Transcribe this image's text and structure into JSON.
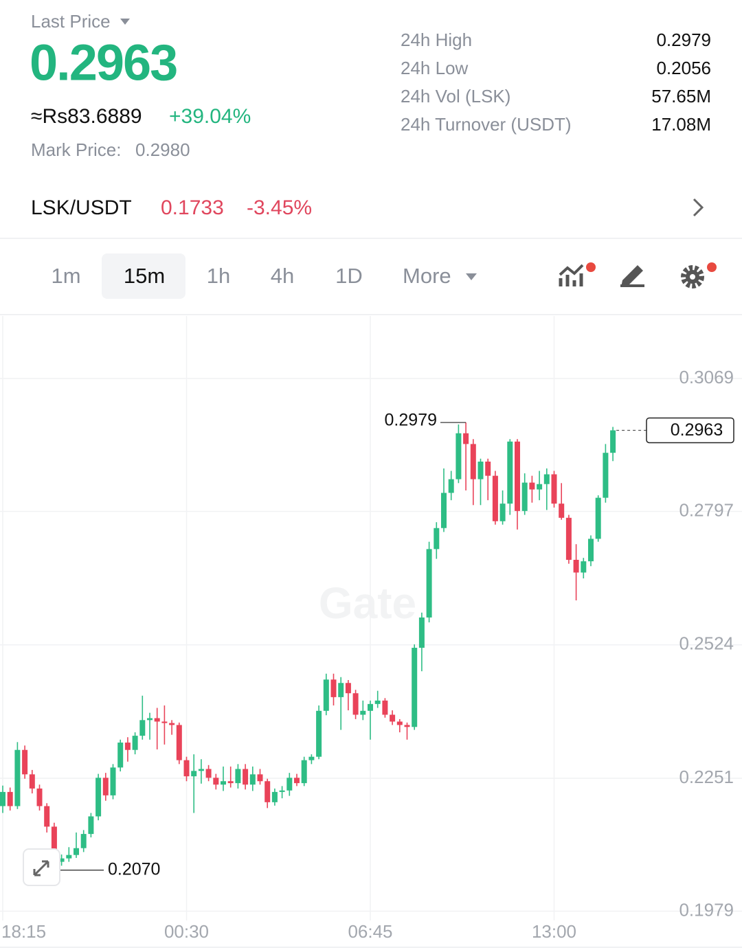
{
  "header": {
    "last_price_label": "Last Price",
    "last_price": "0.2963",
    "fiat_price": "≈Rs83.6889",
    "change": "+39.04%",
    "mark_price_label": "Mark Price:",
    "mark_price": "0.2980"
  },
  "stats": [
    {
      "label": "24h High",
      "value": "0.2979"
    },
    {
      "label": "24h Low",
      "value": "0.2056"
    },
    {
      "label": "24h Vol (LSK)",
      "value": "57.65M"
    },
    {
      "label": "24h Turnover (USDT)",
      "value": "17.08M"
    }
  ],
  "pair": {
    "name": "LSK/USDT",
    "price": "0.1733",
    "change": "-3.45%"
  },
  "timeframes": [
    "1m",
    "15m",
    "1h",
    "4h",
    "1D",
    "More"
  ],
  "chart_data": {
    "type": "candlestick",
    "watermark": "Gate",
    "categories": [
      null,
      null,
      null,
      null,
      null,
      null,
      null,
      null,
      null,
      null,
      null,
      null,
      null,
      null,
      null,
      null,
      null,
      null,
      null,
      null,
      null,
      null,
      null,
      null,
      null,
      null,
      null,
      null,
      null,
      null,
      null,
      null,
      null,
      null,
      null,
      null,
      null,
      null,
      null,
      null,
      null,
      null,
      null,
      null,
      null,
      null,
      null,
      null,
      null,
      null,
      null,
      null,
      null,
      null,
      null,
      null,
      null,
      null,
      null,
      null,
      null,
      null,
      null,
      null,
      null,
      null,
      null,
      null,
      null,
      null,
      null,
      null,
      null,
      null,
      null,
      null,
      null,
      null,
      null,
      null,
      null,
      null,
      null,
      null
    ],
    "open": [
      0.2194,
      0.2223,
      0.2194,
      0.2309,
      0.2259,
      0.223,
      0.2194,
      0.2152,
      0.208,
      0.2087,
      0.2094,
      0.2108,
      0.2137,
      0.2173,
      0.2252,
      0.2216,
      0.2273,
      0.2324,
      0.2309,
      0.2338,
      0.237,
      0.2374,
      0.2367,
      0.2364,
      0.236,
      0.2288,
      0.2255,
      0.2266,
      0.227,
      0.2252,
      0.2238,
      0.2245,
      0.2241,
      0.227,
      0.2238,
      0.2259,
      0.2245,
      0.2202,
      0.2223,
      0.2226,
      0.2252,
      0.2241,
      0.2288,
      0.2295,
      0.2389,
      0.2453,
      0.2417,
      0.2446,
      0.2425,
      0.2381,
      0.2389,
      0.2403,
      0.241,
      0.2381,
      0.2367,
      0.236,
      0.2356,
      0.2518,
      0.258,
      0.272,
      0.2763,
      0.2835,
      0.2863,
      0.2957,
      0.2935,
      0.2863,
      0.2899,
      0.287,
      0.2777,
      0.2813,
      0.294,
      0.2798,
      0.2856,
      0.2842,
      0.2853,
      0.2873,
      0.2813,
      0.2784,
      0.2698,
      0.2672,
      0.2695,
      0.2741,
      0.2825,
      0.2917
    ],
    "high": [
      0.2236,
      0.2232,
      0.2325,
      0.2318,
      0.2268,
      0.2238,
      0.22,
      0.216,
      0.2095,
      0.211,
      0.214,
      0.2145,
      0.218,
      0.226,
      0.2262,
      0.228,
      0.233,
      0.2335,
      0.2345,
      0.242,
      0.2385,
      0.2395,
      0.24,
      0.237,
      0.2365,
      0.2295,
      0.23,
      0.229,
      0.2278,
      0.226,
      0.2275,
      0.2275,
      0.228,
      0.228,
      0.2275,
      0.227,
      0.225,
      0.223,
      0.2235,
      0.2262,
      0.226,
      0.2295,
      0.23,
      0.24,
      0.2465,
      0.2465,
      0.2458,
      0.2452,
      0.2432,
      0.241,
      0.241,
      0.243,
      0.2415,
      0.239,
      0.2372,
      0.2365,
      0.2525,
      0.259,
      0.2735,
      0.2775,
      0.2885,
      0.288,
      0.2975,
      0.2979,
      0.2945,
      0.2905,
      0.2905,
      0.288,
      0.284,
      0.2945,
      0.2945,
      0.2875,
      0.287,
      0.288,
      0.2885,
      0.288,
      0.2855,
      0.279,
      0.273,
      0.2702,
      0.2748,
      0.283,
      0.2935,
      0.297
    ],
    "low": [
      0.218,
      0.2185,
      0.2188,
      0.225,
      0.222,
      0.2185,
      0.214,
      0.207,
      0.2072,
      0.208,
      0.2088,
      0.21,
      0.213,
      0.2165,
      0.2205,
      0.2208,
      0.2265,
      0.2285,
      0.23,
      0.233,
      0.233,
      0.231,
      0.232,
      0.234,
      0.228,
      0.2245,
      0.218,
      0.224,
      0.2245,
      0.2228,
      0.2225,
      0.2232,
      0.223,
      0.2228,
      0.2225,
      0.2238,
      0.219,
      0.2195,
      0.221,
      0.2215,
      0.2235,
      0.2235,
      0.228,
      0.229,
      0.238,
      0.24,
      0.235,
      0.239,
      0.2372,
      0.237,
      0.233,
      0.2395,
      0.2375,
      0.236,
      0.2345,
      0.233,
      0.235,
      0.247,
      0.257,
      0.27,
      0.2755,
      0.282,
      0.2855,
      0.284,
      0.281,
      0.281,
      0.282,
      0.277,
      0.277,
      0.279,
      0.276,
      0.279,
      0.2815,
      0.282,
      0.28,
      0.2805,
      0.278,
      0.269,
      0.2615,
      0.266,
      0.2685,
      0.2735,
      0.2815,
      0.29
    ],
    "close": [
      0.2223,
      0.2194,
      0.2309,
      0.2259,
      0.223,
      0.2194,
      0.2152,
      0.208,
      0.2087,
      0.2094,
      0.2108,
      0.2137,
      0.2173,
      0.2252,
      0.2216,
      0.2273,
      0.2324,
      0.2309,
      0.2338,
      0.237,
      0.2374,
      0.2367,
      0.2364,
      0.236,
      0.2288,
      0.2255,
      0.2266,
      0.227,
      0.2252,
      0.2238,
      0.2245,
      0.2241,
      0.227,
      0.2238,
      0.2259,
      0.2245,
      0.2202,
      0.2223,
      0.2226,
      0.2252,
      0.2241,
      0.2288,
      0.2295,
      0.2389,
      0.2453,
      0.2417,
      0.2446,
      0.2425,
      0.2381,
      0.2389,
      0.2403,
      0.241,
      0.2381,
      0.2367,
      0.236,
      0.2356,
      0.2518,
      0.258,
      0.272,
      0.2763,
      0.2835,
      0.2863,
      0.2957,
      0.2935,
      0.2863,
      0.2899,
      0.287,
      0.2777,
      0.2813,
      0.294,
      0.2798,
      0.2856,
      0.2842,
      0.2853,
      0.2873,
      0.2813,
      0.2784,
      0.2698,
      0.2672,
      0.2695,
      0.2741,
      0.2825,
      0.2917,
      0.2963
    ],
    "up_color": "#2ebd85",
    "down_color": "#e94359",
    "ylim": [
      0.196,
      0.3197
    ],
    "yticks": [
      0.3069,
      0.2797,
      0.2524,
      0.2251,
      0.1979
    ],
    "xticks": [
      {
        "value": 0,
        "label": "18:15"
      },
      {
        "value": 25,
        "label": "00:30"
      },
      {
        "value": 50,
        "label": "06:45"
      },
      {
        "value": 75,
        "label": "13:00"
      }
    ],
    "grid": true,
    "high_marker": 0.2979,
    "low_marker": {
      "value": 0.207,
      "label": "0.2070"
    },
    "last_price_marker": 0.2963
  }
}
